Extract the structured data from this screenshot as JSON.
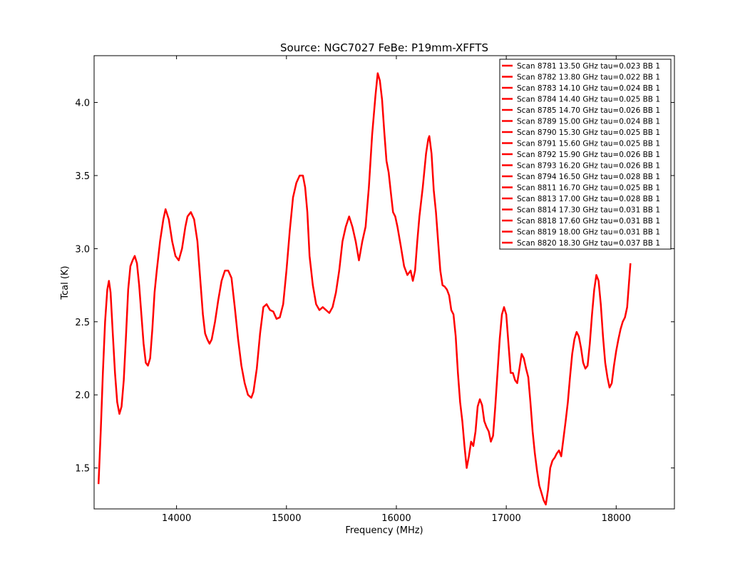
{
  "chart_data": {
    "type": "line",
    "title": "Source: NGC7027 FeBe: P19mm-XFFTS",
    "xlabel": "Frequency (MHz)",
    "ylabel": "Tcal (K)",
    "xlim": [
      13250,
      18530
    ],
    "ylim": [
      1.22,
      4.32
    ],
    "xticks": [
      14000,
      15000,
      16000,
      17000,
      18000
    ],
    "yticks": [
      1.5,
      2.0,
      2.5,
      3.0,
      3.5,
      4.0
    ],
    "xtick_labels": [
      "14000",
      "15000",
      "16000",
      "17000",
      "18000"
    ],
    "ytick_labels": [
      "1.5",
      "2.0",
      "2.5",
      "3.0",
      "3.5",
      "4.0"
    ],
    "grid": false,
    "legend_position": "top-right",
    "line_color": "#ff0000",
    "legend": [
      "Scan 8781 13.50 GHz tau=0.023 BB 1",
      "Scan 8782 13.80 GHz tau=0.022 BB 1",
      "Scan 8783 14.10 GHz tau=0.024 BB 1",
      "Scan 8784 14.40 GHz tau=0.025 BB 1",
      "Scan 8785 14.70 GHz tau=0.026 BB 1",
      "Scan 8789 15.00 GHz tau=0.024 BB 1",
      "Scan 8790 15.30 GHz tau=0.025 BB 1",
      "Scan 8791 15.60 GHz tau=0.025 BB 1",
      "Scan 8792 15.90 GHz tau=0.026 BB 1",
      "Scan 8793 16.20 GHz tau=0.026 BB 1",
      "Scan 8794 16.50 GHz tau=0.028 BB 1",
      "Scan 8811 16.70 GHz tau=0.025 BB 1",
      "Scan 8813 17.00 GHz tau=0.028 BB 1",
      "Scan 8814 17.30 GHz tau=0.031 BB 1",
      "Scan 8818 17.60 GHz tau=0.031 BB 1",
      "Scan 8819 18.00 GHz tau=0.031 BB 1",
      "Scan 8820 18.30 GHz tau=0.037 BB 1"
    ],
    "series": [
      {
        "points": [
          [
            13290,
            1.39
          ],
          [
            13310,
            1.75
          ],
          [
            13330,
            2.15
          ],
          [
            13350,
            2.5
          ],
          [
            13370,
            2.72
          ],
          [
            13385,
            2.78
          ],
          [
            13400,
            2.7
          ],
          [
            13420,
            2.42
          ],
          [
            13440,
            2.15
          ],
          [
            13460,
            1.95
          ],
          [
            13480,
            1.87
          ],
          [
            13500,
            1.92
          ],
          [
            13520,
            2.1
          ],
          [
            13540,
            2.4
          ],
          [
            13560,
            2.72
          ],
          [
            13580,
            2.88
          ],
          [
            13600,
            2.92
          ],
          [
            13620,
            2.95
          ],
          [
            13640,
            2.9
          ],
          [
            13660,
            2.75
          ],
          [
            13680,
            2.55
          ],
          [
            13700,
            2.35
          ],
          [
            13720,
            2.22
          ],
          [
            13740,
            2.2
          ],
          [
            13760,
            2.25
          ],
          [
            13780,
            2.45
          ],
          [
            13800,
            2.7
          ],
          [
            13820,
            2.85
          ],
          [
            13850,
            3.05
          ],
          [
            13880,
            3.2
          ],
          [
            13900,
            3.27
          ],
          [
            13930,
            3.2
          ],
          [
            13960,
            3.05
          ],
          [
            13990,
            2.95
          ],
          [
            14020,
            2.92
          ],
          [
            14050,
            3.0
          ],
          [
            14080,
            3.15
          ],
          [
            14100,
            3.22
          ],
          [
            14130,
            3.25
          ],
          [
            14160,
            3.2
          ],
          [
            14190,
            3.05
          ],
          [
            14220,
            2.75
          ],
          [
            14240,
            2.55
          ],
          [
            14260,
            2.42
          ],
          [
            14280,
            2.38
          ],
          [
            14300,
            2.35
          ],
          [
            14320,
            2.38
          ],
          [
            14350,
            2.5
          ],
          [
            14380,
            2.65
          ],
          [
            14410,
            2.78
          ],
          [
            14440,
            2.85
          ],
          [
            14470,
            2.85
          ],
          [
            14500,
            2.8
          ],
          [
            14530,
            2.6
          ],
          [
            14560,
            2.38
          ],
          [
            14590,
            2.2
          ],
          [
            14620,
            2.08
          ],
          [
            14650,
            2.0
          ],
          [
            14680,
            1.98
          ],
          [
            14700,
            2.02
          ],
          [
            14730,
            2.18
          ],
          [
            14760,
            2.42
          ],
          [
            14790,
            2.6
          ],
          [
            14820,
            2.62
          ],
          [
            14850,
            2.58
          ],
          [
            14880,
            2.57
          ],
          [
            14910,
            2.52
          ],
          [
            14940,
            2.53
          ],
          [
            14970,
            2.62
          ],
          [
            15000,
            2.85
          ],
          [
            15030,
            3.12
          ],
          [
            15060,
            3.35
          ],
          [
            15090,
            3.45
          ],
          [
            15120,
            3.5
          ],
          [
            15150,
            3.5
          ],
          [
            15170,
            3.42
          ],
          [
            15190,
            3.25
          ],
          [
            15210,
            2.95
          ],
          [
            15240,
            2.75
          ],
          [
            15270,
            2.62
          ],
          [
            15300,
            2.58
          ],
          [
            15330,
            2.6
          ],
          [
            15360,
            2.58
          ],
          [
            15390,
            2.56
          ],
          [
            15420,
            2.6
          ],
          [
            15450,
            2.7
          ],
          [
            15480,
            2.85
          ],
          [
            15510,
            3.05
          ],
          [
            15540,
            3.15
          ],
          [
            15570,
            3.22
          ],
          [
            15600,
            3.15
          ],
          [
            15630,
            3.05
          ],
          [
            15660,
            2.92
          ],
          [
            15690,
            3.05
          ],
          [
            15720,
            3.15
          ],
          [
            15750,
            3.42
          ],
          [
            15780,
            3.78
          ],
          [
            15810,
            4.05
          ],
          [
            15830,
            4.2
          ],
          [
            15850,
            4.15
          ],
          [
            15870,
            4.02
          ],
          [
            15890,
            3.8
          ],
          [
            15910,
            3.6
          ],
          [
            15930,
            3.52
          ],
          [
            15950,
            3.38
          ],
          [
            15970,
            3.25
          ],
          [
            15990,
            3.22
          ],
          [
            16010,
            3.15
          ],
          [
            16040,
            3.02
          ],
          [
            16070,
            2.88
          ],
          [
            16100,
            2.82
          ],
          [
            16130,
            2.85
          ],
          [
            16150,
            2.78
          ],
          [
            16170,
            2.85
          ],
          [
            16190,
            3.05
          ],
          [
            16210,
            3.22
          ],
          [
            16240,
            3.42
          ],
          [
            16270,
            3.65
          ],
          [
            16290,
            3.75
          ],
          [
            16300,
            3.77
          ],
          [
            16320,
            3.65
          ],
          [
            16340,
            3.4
          ],
          [
            16360,
            3.25
          ],
          [
            16380,
            3.05
          ],
          [
            16400,
            2.85
          ],
          [
            16420,
            2.75
          ],
          [
            16440,
            2.74
          ],
          [
            16460,
            2.72
          ],
          [
            16480,
            2.68
          ],
          [
            16500,
            2.58
          ],
          [
            16520,
            2.55
          ],
          [
            16540,
            2.4
          ],
          [
            16560,
            2.15
          ],
          [
            16580,
            1.95
          ],
          [
            16600,
            1.82
          ],
          [
            16620,
            1.65
          ],
          [
            16640,
            1.5
          ],
          [
            16660,
            1.58
          ],
          [
            16680,
            1.68
          ],
          [
            16700,
            1.65
          ],
          [
            16720,
            1.75
          ],
          [
            16740,
            1.92
          ],
          [
            16760,
            1.97
          ],
          [
            16780,
            1.93
          ],
          [
            16800,
            1.82
          ],
          [
            16820,
            1.78
          ],
          [
            16840,
            1.75
          ],
          [
            16860,
            1.68
          ],
          [
            16880,
            1.72
          ],
          [
            16900,
            1.92
          ],
          [
            16920,
            2.15
          ],
          [
            16940,
            2.38
          ],
          [
            16960,
            2.55
          ],
          [
            16980,
            2.6
          ],
          [
            17000,
            2.55
          ],
          [
            17020,
            2.35
          ],
          [
            17040,
            2.15
          ],
          [
            17060,
            2.15
          ],
          [
            17080,
            2.1
          ],
          [
            17100,
            2.08
          ],
          [
            17120,
            2.18
          ],
          [
            17140,
            2.28
          ],
          [
            17160,
            2.25
          ],
          [
            17180,
            2.18
          ],
          [
            17200,
            2.12
          ],
          [
            17220,
            1.95
          ],
          [
            17240,
            1.75
          ],
          [
            17260,
            1.6
          ],
          [
            17280,
            1.48
          ],
          [
            17300,
            1.38
          ],
          [
            17320,
            1.33
          ],
          [
            17340,
            1.28
          ],
          [
            17360,
            1.25
          ],
          [
            17380,
            1.35
          ],
          [
            17400,
            1.5
          ],
          [
            17420,
            1.55
          ],
          [
            17440,
            1.57
          ],
          [
            17460,
            1.6
          ],
          [
            17480,
            1.62
          ],
          [
            17500,
            1.58
          ],
          [
            17520,
            1.7
          ],
          [
            17540,
            1.82
          ],
          [
            17560,
            1.95
          ],
          [
            17580,
            2.12
          ],
          [
            17600,
            2.28
          ],
          [
            17620,
            2.38
          ],
          [
            17640,
            2.43
          ],
          [
            17660,
            2.4
          ],
          [
            17680,
            2.32
          ],
          [
            17700,
            2.22
          ],
          [
            17720,
            2.18
          ],
          [
            17740,
            2.2
          ],
          [
            17760,
            2.35
          ],
          [
            17780,
            2.55
          ],
          [
            17800,
            2.72
          ],
          [
            17820,
            2.82
          ],
          [
            17840,
            2.78
          ],
          [
            17860,
            2.62
          ],
          [
            17880,
            2.4
          ],
          [
            17900,
            2.22
          ],
          [
            17920,
            2.12
          ],
          [
            17940,
            2.05
          ],
          [
            17960,
            2.08
          ],
          [
            17980,
            2.2
          ],
          [
            18000,
            2.3
          ],
          [
            18020,
            2.38
          ],
          [
            18040,
            2.45
          ],
          [
            18060,
            2.5
          ],
          [
            18080,
            2.53
          ],
          [
            18100,
            2.6
          ],
          [
            18130,
            2.9
          ]
        ]
      }
    ]
  }
}
